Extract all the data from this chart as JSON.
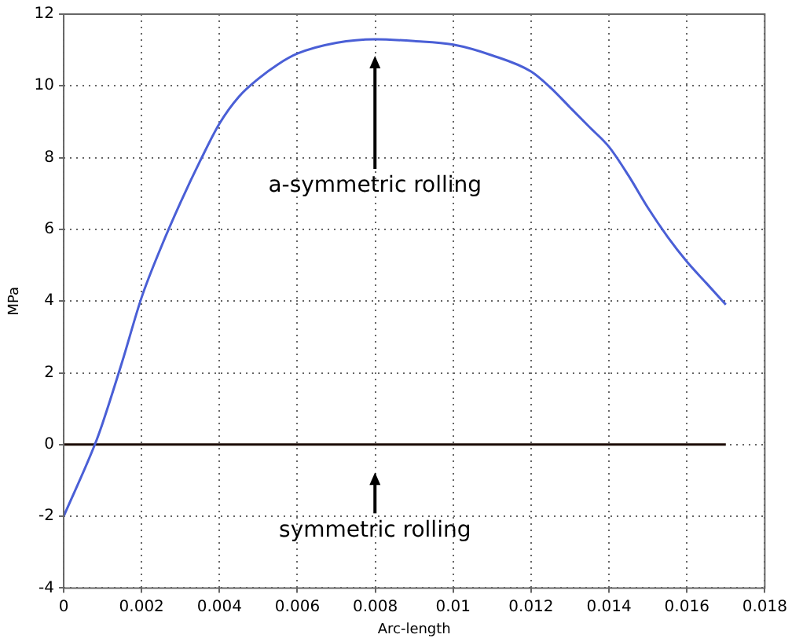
{
  "chart_data": {
    "type": "line",
    "xlabel": "Arc-length",
    "ylabel": "MPa",
    "xlim": [
      0,
      0.018
    ],
    "xticks": [
      0,
      0.002,
      0.004,
      0.006,
      0.008,
      0.01,
      0.012,
      0.014,
      0.016,
      0.018
    ],
    "ylim": [
      -4,
      12
    ],
    "yticks": [
      -4,
      -2,
      0,
      2,
      4,
      6,
      8,
      10,
      12
    ],
    "grid": true,
    "legend": false,
    "marker": "none",
    "line_style": "solid",
    "series": [
      {
        "color": "#4a5fd6",
        "x": [
          0,
          0.0008,
          0.001,
          0.0015,
          0.002,
          0.0025,
          0.003,
          0.0035,
          0.004,
          0.0045,
          0.005,
          0.0055,
          0.006,
          0.007,
          0.008,
          0.009,
          0.01,
          0.011,
          0.012,
          0.0125,
          0.013,
          0.0135,
          0.014,
          0.0145,
          0.015,
          0.0155,
          0.016,
          0.0165,
          0.017
        ],
        "values": [
          -2,
          0,
          0.6,
          2.3,
          4.1,
          5.5,
          6.75,
          7.9,
          8.95,
          9.7,
          10.2,
          10.6,
          10.9,
          11.2,
          11.3,
          11.25,
          11.15,
          10.85,
          10.4,
          9.95,
          9.4,
          8.85,
          8.3,
          7.5,
          6.6,
          5.8,
          5.1,
          4.5,
          3.9
        ]
      },
      {
        "color": "#1a0a00",
        "x": [
          0,
          0.017
        ],
        "values": [
          0,
          0
        ]
      }
    ],
    "annotations": [
      "a-symmetric rolling",
      "symmetric rolling"
    ]
  }
}
